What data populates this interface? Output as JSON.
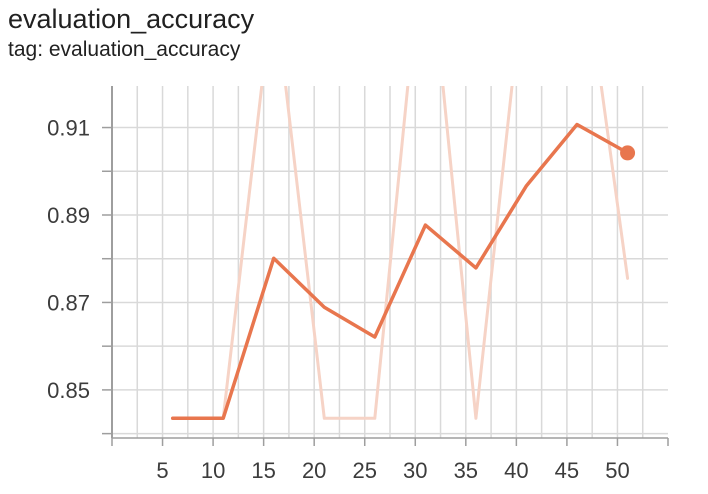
{
  "title": "evaluation_accuracy",
  "subtitle": "tag: evaluation_accuracy",
  "chart_data": {
    "type": "line",
    "x_ticks": [
      5,
      10,
      15,
      20,
      25,
      30,
      35,
      40,
      45,
      50
    ],
    "y_ticks": [
      0.85,
      0.87,
      0.89,
      0.91
    ],
    "y_tick_labels": [
      "0.85",
      "0.87",
      "0.89",
      "0.91"
    ],
    "xlim": [
      0,
      55
    ],
    "ylim": [
      0.839,
      0.9195
    ],
    "grid": true,
    "series": [
      {
        "role": "raw",
        "color": "#f6d3c6",
        "x": [
          6,
          11,
          16,
          21,
          26,
          31,
          36,
          41,
          46,
          51
        ],
        "y": [
          0.8435,
          0.8435,
          0.943,
          0.8435,
          0.8435,
          0.96,
          0.8435,
          0.95,
          0.96,
          0.8755
        ]
      },
      {
        "role": "smoothed",
        "color": "#e8764e",
        "x": [
          6,
          11,
          16,
          21,
          26,
          31,
          36,
          41,
          46,
          51
        ],
        "y": [
          0.8435,
          0.8435,
          0.8801,
          0.8689,
          0.8621,
          0.8877,
          0.8779,
          0.8967,
          0.9107,
          0.9042
        ]
      }
    ],
    "marker_last_point": true
  }
}
